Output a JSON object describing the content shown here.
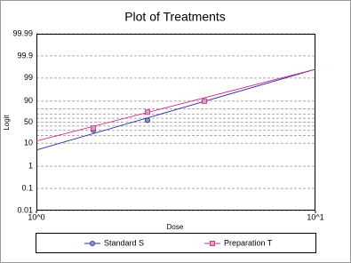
{
  "chart_data": {
    "type": "scatter",
    "title": "Plot of Treatments",
    "x_label": "Dose",
    "y_label": "Logit",
    "x_log": true,
    "y_scale": "logit",
    "xlim": [
      1,
      10
    ],
    "xticks": [
      {
        "value": 1,
        "label": "10^0"
      },
      {
        "value": 10,
        "label": "10^1"
      }
    ],
    "ylim": [
      0.01,
      99.99
    ],
    "yticks": [
      0.01,
      0.1,
      1,
      10,
      50,
      90,
      99,
      99.9,
      99.99
    ],
    "minor_grid": [
      20,
      30,
      40,
      60,
      70,
      80
    ],
    "grid": true,
    "series": [
      {
        "name": "Standard S",
        "color": "#2a2a9a",
        "fill": "#8f8fd0",
        "marker": "circle",
        "x": [
          1.6,
          2.5,
          4
        ],
        "values": [
          30,
          55,
          90
        ],
        "fit_values": [
          5.2,
          99.6
        ]
      },
      {
        "name": "Preparation T",
        "color": "#cc2f8f",
        "fill": "#e89ab8",
        "marker": "square",
        "x": [
          1.6,
          2.5,
          4
        ],
        "values": [
          35,
          74,
          90
        ],
        "fit_values": [
          12.3,
          99.6
        ]
      }
    ]
  }
}
